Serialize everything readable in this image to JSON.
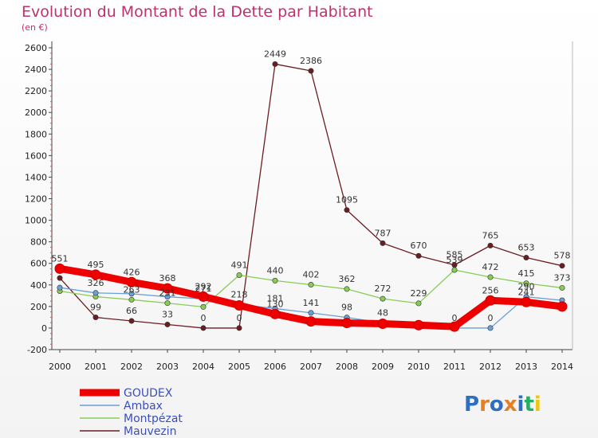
{
  "chart_data": {
    "type": "line",
    "title": "Evolution du Montant de la Dette par Habitant",
    "subtitle": "(en €)",
    "xlabel": "",
    "ylabel": "",
    "ylim": [
      -200,
      2600
    ],
    "yticks": [
      -200,
      0,
      200,
      400,
      600,
      800,
      1000,
      1200,
      1400,
      1600,
      1800,
      2000,
      2200,
      2400,
      2600
    ],
    "categories": [
      "2000",
      "2001",
      "2002",
      "2003",
      "2004",
      "2005",
      "2006",
      "2007",
      "2008",
      "2009",
      "2010",
      "2011",
      "2012",
      "2013",
      "2014"
    ],
    "series": [
      {
        "name": "GOUDEX",
        "color": "#ee0000",
        "values": [
          551,
          495,
          426,
          368,
          292,
          210,
          130,
          61,
          47,
          40,
          27,
          13,
          256,
          241,
          200
        ],
        "labels": [
          "551",
          "495",
          "426",
          "368",
          "292",
          "",
          "130",
          "",
          "",
          "",
          "",
          "",
          "256",
          "241",
          ""
        ]
      },
      {
        "name": "Ambax",
        "color": "#6a9fd8",
        "values": [
          375,
          326,
          318,
          290,
          271,
          218,
          181,
          141,
          98,
          48,
          5,
          0,
          0,
          290,
          257
        ],
        "labels": [
          "",
          "326",
          "",
          "",
          "271",
          "218",
          "181",
          "141",
          "98",
          "48",
          "",
          "0",
          "0",
          "290",
          ""
        ]
      },
      {
        "name": "Montpézat",
        "color": "#88cc55",
        "values": [
          343,
          291,
          263,
          231,
          196,
          491,
          440,
          402,
          362,
          272,
          229,
          539,
          472,
          415,
          373
        ],
        "labels": [
          "",
          "",
          "263",
          "231",
          "",
          "491",
          "440",
          "402",
          "362",
          "272",
          "229",
          "539",
          "472",
          "415",
          "373"
        ]
      },
      {
        "name": "Mauvezin",
        "color": "#6b1e22",
        "values": [
          464,
          99,
          66,
          33,
          0,
          0,
          2449,
          2386,
          1095,
          787,
          670,
          585,
          765,
          653,
          578
        ],
        "labels": [
          "",
          "99",
          "66",
          "33",
          "0",
          "0",
          "2449",
          "2386",
          "1095",
          "787",
          "670",
          "585",
          "765",
          "653",
          "578"
        ]
      }
    ],
    "legend_position": "bottom-left",
    "grid": false
  },
  "brand": {
    "text": "Proxiti"
  }
}
